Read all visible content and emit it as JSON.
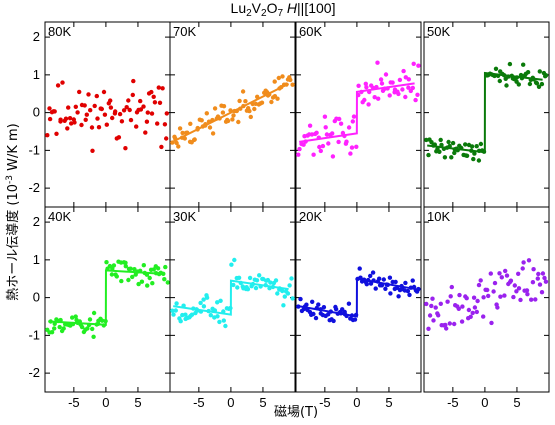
{
  "figure": {
    "title_main": "Lu",
    "title_sub1": "2",
    "title_v": "V",
    "title_sub2": "2",
    "title_o": "O",
    "title_sub3": "7",
    "title_field_var": "H",
    "title_field_rest": "||[100]",
    "xlabel": "磁場(T)",
    "ylabel_prefix": "熱ホール伝導度 (10",
    "ylabel_exp": "-3",
    "ylabel_suffix": " W/K m)"
  },
  "chart_data": {
    "type": "scatter",
    "layout": "2x4 panel grid, shared axes",
    "xlim": [
      -9.5,
      10
    ],
    "ylim": [
      -2.5,
      2.4
    ],
    "xticks": [
      -5,
      0,
      5
    ],
    "yticks": [
      -2,
      -1,
      0,
      1,
      2
    ],
    "xtick_labels": [
      "-5",
      "0",
      "5"
    ],
    "ytick_labels": [
      "-2",
      "-1",
      "0",
      "1",
      "2"
    ],
    "grid": false,
    "panels": [
      {
        "label": "80K",
        "color": "#e00000",
        "shape": "step",
        "a": 0.0,
        "s": 0.0,
        "jitter": 0.45,
        "has_fit": false,
        "seed": 11
      },
      {
        "label": "70K",
        "color": "#f08c1c",
        "shape": "linear",
        "a": 0.0,
        "s": 0.085,
        "jitter": 0.22,
        "has_fit": true,
        "seed": 23
      },
      {
        "label": "60K",
        "color": "#ff22ff",
        "shape": "step",
        "a": 0.55,
        "s": 0.025,
        "jitter": 0.3,
        "has_fit": true,
        "seed": 37
      },
      {
        "label": "50K",
        "color": "#0a7a0a",
        "shape": "step",
        "a": 1.05,
        "s": -0.02,
        "jitter": 0.15,
        "has_fit": true,
        "seed": 41
      },
      {
        "label": "40K",
        "color": "#22ee22",
        "shape": "step",
        "a": 0.72,
        "s": -0.01,
        "jitter": 0.2,
        "has_fit": true,
        "seed": 53
      },
      {
        "label": "30K",
        "color": "#22eeee",
        "shape": "step",
        "a": 0.45,
        "s": -0.025,
        "jitter": 0.25,
        "has_fit": true,
        "seed": 67
      },
      {
        "label": "20K",
        "color": "#1010dd",
        "shape": "step",
        "a": 0.5,
        "s": -0.03,
        "jitter": 0.14,
        "has_fit": true,
        "seed": 71
      },
      {
        "label": "10K",
        "color": "#9a22ee",
        "shape": "linear",
        "a": 0.0,
        "s": 0.06,
        "jitter": 0.4,
        "has_fit": false,
        "seed": 89
      }
    ]
  }
}
